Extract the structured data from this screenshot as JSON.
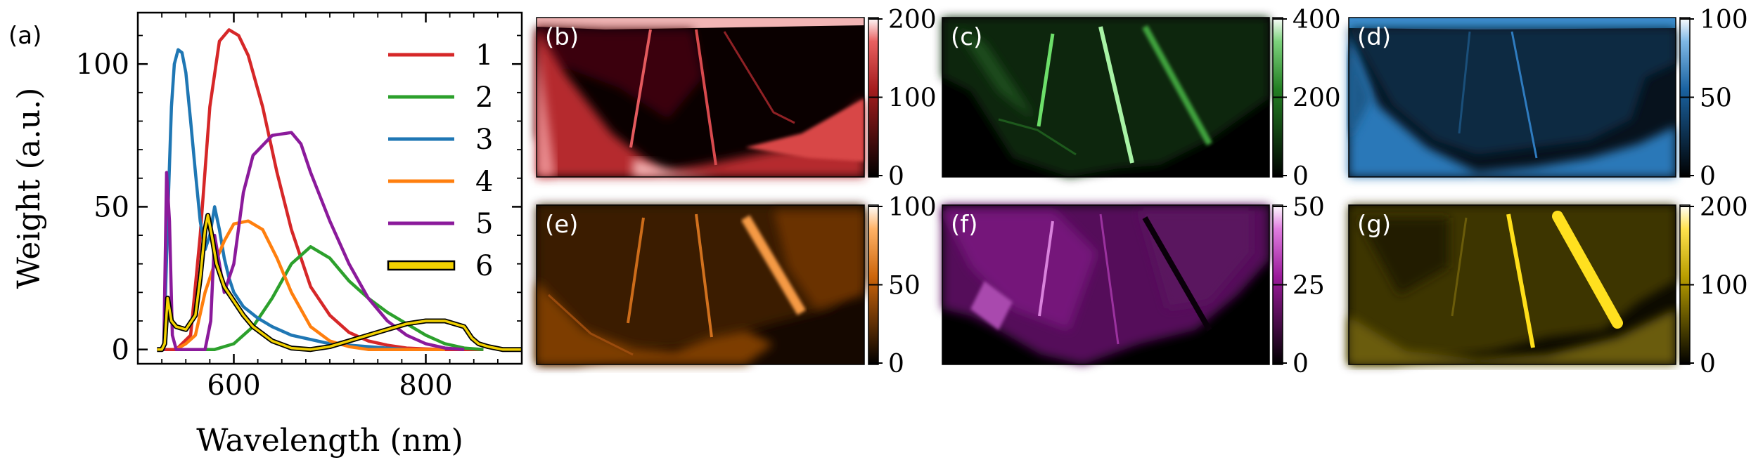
{
  "chart_data": [
    {
      "type": "line",
      "panel": "(a)",
      "xlabel": "Wavelength (nm)",
      "ylabel": "Weight (a.u.)",
      "xlim": [
        500,
        900
      ],
      "ylim": [
        -5,
        118
      ],
      "xticks": [
        600,
        800
      ],
      "yticks": [
        0,
        50,
        100
      ],
      "legend": "top-right",
      "series": [
        {
          "name": "1",
          "color": "#d62728",
          "x": [
            520,
            540,
            555,
            565,
            575,
            585,
            595,
            605,
            615,
            630,
            645,
            660,
            680,
            700,
            720,
            740,
            760,
            780,
            800,
            820,
            840,
            860
          ],
          "y": [
            0,
            0,
            5,
            40,
            85,
            108,
            112,
            110,
            103,
            85,
            62,
            42,
            22,
            12,
            6,
            3,
            1.5,
            0.5,
            0.2,
            0,
            0,
            0
          ]
        },
        {
          "name": "2",
          "color": "#2ca02c",
          "x": [
            540,
            560,
            580,
            600,
            620,
            640,
            660,
            680,
            700,
            720,
            740,
            760,
            780,
            800,
            820,
            840,
            860
          ],
          "y": [
            0,
            0,
            0,
            2,
            8,
            18,
            30,
            36,
            32,
            24,
            18,
            13,
            9,
            5,
            2,
            0.5,
            0
          ]
        },
        {
          "name": "3",
          "color": "#1f77b4",
          "x": [
            527,
            532,
            535,
            538,
            542,
            546,
            550,
            555,
            560,
            565,
            570,
            575,
            580,
            585,
            590,
            595,
            600,
            610,
            625,
            640,
            660,
            700,
            740,
            780,
            820
          ],
          "y": [
            0,
            55,
            85,
            100,
            105,
            104,
            97,
            80,
            62,
            45,
            35,
            40,
            50,
            42,
            32,
            25,
            20,
            15,
            11,
            8,
            5,
            2,
            1,
            0,
            0
          ]
        },
        {
          "name": "4",
          "color": "#ff7f0e",
          "x": [
            540,
            550,
            560,
            570,
            580,
            590,
            600,
            615,
            630,
            645,
            660,
            680,
            700,
            720,
            740,
            780,
            820
          ],
          "y": [
            0,
            2,
            5,
            20,
            30,
            38,
            44,
            45,
            42,
            32,
            20,
            8,
            3,
            1,
            0,
            0,
            0
          ]
        },
        {
          "name": "5",
          "color": "#8b1a9b",
          "x": [
            520,
            527,
            530,
            533,
            536,
            540,
            560,
            570,
            576,
            580,
            585,
            590,
            600,
            610,
            620,
            640,
            660,
            670,
            680,
            700,
            720,
            740,
            760,
            780,
            800,
            820,
            840
          ],
          "y": [
            0,
            0,
            62,
            45,
            5,
            0,
            0,
            0,
            10,
            40,
            30,
            20,
            30,
            55,
            68,
            75,
            76,
            72,
            62,
            45,
            30,
            18,
            10,
            5,
            2,
            0.5,
            0
          ]
        },
        {
          "name": "6",
          "color": "#f2d100",
          "x": [
            520,
            525,
            528,
            531,
            535,
            540,
            550,
            560,
            565,
            570,
            573,
            577,
            582,
            590,
            600,
            610,
            620,
            640,
            660,
            680,
            700,
            720,
            740,
            760,
            780,
            800,
            820,
            840,
            848,
            855,
            865,
            880,
            900
          ],
          "y": [
            0,
            0,
            2,
            18,
            10,
            8,
            7,
            12,
            25,
            42,
            47,
            40,
            30,
            22,
            17,
            12,
            8,
            3,
            0.5,
            0,
            1,
            3,
            5,
            7,
            9,
            10,
            10,
            8,
            4,
            2,
            1,
            0,
            0
          ]
        }
      ]
    },
    {
      "type": "heatmap",
      "panel": "(b)",
      "colormap": "red",
      "colorbar_ticks": [
        "200",
        "100",
        "0"
      ]
    },
    {
      "type": "heatmap",
      "panel": "(c)",
      "colormap": "green",
      "colorbar_ticks": [
        "400",
        "200",
        "0"
      ]
    },
    {
      "type": "heatmap",
      "panel": "(d)",
      "colormap": "blue",
      "colorbar_ticks": [
        "100",
        "50",
        "0"
      ]
    },
    {
      "type": "heatmap",
      "panel": "(e)",
      "colormap": "orange",
      "colorbar_ticks": [
        "100",
        "50",
        "0"
      ]
    },
    {
      "type": "heatmap",
      "panel": "(f)",
      "colormap": "purple",
      "colorbar_ticks": [
        "50",
        "25",
        "0"
      ]
    },
    {
      "type": "heatmap",
      "panel": "(g)",
      "colormap": "gold",
      "colorbar_ticks": [
        "200",
        "100",
        "0"
      ]
    }
  ],
  "colors": {
    "red": "#d62728",
    "green": "#2ca02c",
    "blue": "#1f77b4",
    "orange": "#ff7f0e",
    "purple": "#b41fb4",
    "gold": "#f2d100"
  }
}
